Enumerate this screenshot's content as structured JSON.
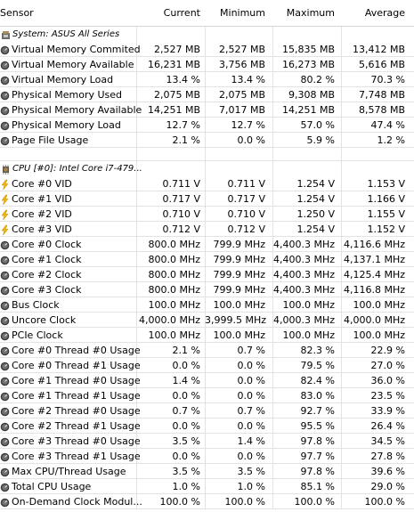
{
  "columns": {
    "sensor": "Sensor",
    "current": "Current",
    "minimum": "Minimum",
    "maximum": "Maximum",
    "average": "Average"
  },
  "groups": [
    {
      "title": "System: ASUS All Series",
      "icon": "system-board-icon",
      "rows": [
        {
          "name": "Virtual Memory Commited",
          "icon": "memory-gauge-icon",
          "current": "2,527 MB",
          "min": "2,527 MB",
          "max": "15,835 MB",
          "avg": "13,412 MB"
        },
        {
          "name": "Virtual Memory Available",
          "icon": "memory-gauge-icon",
          "current": "16,231 MB",
          "min": "3,756 MB",
          "max": "16,273 MB",
          "avg": "5,616 MB"
        },
        {
          "name": "Virtual Memory Load",
          "icon": "memory-gauge-icon",
          "current": "13.4 %",
          "min": "13.4 %",
          "max": "80.2 %",
          "avg": "70.3 %"
        },
        {
          "name": "Physical Memory Used",
          "icon": "memory-gauge-icon",
          "current": "2,075 MB",
          "min": "2,075 MB",
          "max": "9,308 MB",
          "avg": "7,748 MB"
        },
        {
          "name": "Physical Memory Available",
          "icon": "memory-gauge-icon",
          "current": "14,251 MB",
          "min": "7,017 MB",
          "max": "14,251 MB",
          "avg": "8,578 MB"
        },
        {
          "name": "Physical Memory Load",
          "icon": "memory-gauge-icon",
          "current": "12.7 %",
          "min": "12.7 %",
          "max": "57.0 %",
          "avg": "47.4 %"
        },
        {
          "name": "Page File Usage",
          "icon": "memory-gauge-icon",
          "current": "2.1 %",
          "min": "0.0 %",
          "max": "5.9 %",
          "avg": "1.2 %"
        }
      ]
    },
    {
      "title": "CPU [#0]: Intel Core i7-479...",
      "icon": "cpu-chip-icon",
      "rows": [
        {
          "name": "Core #0 VID",
          "icon": "lightning-icon",
          "current": "0.711 V",
          "min": "0.711 V",
          "max": "1.254 V",
          "avg": "1.153 V"
        },
        {
          "name": "Core #1 VID",
          "icon": "lightning-icon",
          "current": "0.717 V",
          "min": "0.717 V",
          "max": "1.254 V",
          "avg": "1.166 V"
        },
        {
          "name": "Core #2 VID",
          "icon": "lightning-icon",
          "current": "0.710 V",
          "min": "0.710 V",
          "max": "1.250 V",
          "avg": "1.155 V"
        },
        {
          "name": "Core #3 VID",
          "icon": "lightning-icon",
          "current": "0.712 V",
          "min": "0.712 V",
          "max": "1.254 V",
          "avg": "1.152 V"
        },
        {
          "name": "Core #0 Clock",
          "icon": "gauge-icon",
          "current": "800.0 MHz",
          "min": "799.9 MHz",
          "max": "4,400.3 MHz",
          "avg": "4,116.6 MHz"
        },
        {
          "name": "Core #1 Clock",
          "icon": "gauge-icon",
          "current": "800.0 MHz",
          "min": "799.9 MHz",
          "max": "4,400.3 MHz",
          "avg": "4,137.1 MHz"
        },
        {
          "name": "Core #2 Clock",
          "icon": "gauge-icon",
          "current": "800.0 MHz",
          "min": "799.9 MHz",
          "max": "4,400.3 MHz",
          "avg": "4,125.4 MHz"
        },
        {
          "name": "Core #3 Clock",
          "icon": "gauge-icon",
          "current": "800.0 MHz",
          "min": "799.9 MHz",
          "max": "4,400.3 MHz",
          "avg": "4,116.8 MHz"
        },
        {
          "name": "Bus Clock",
          "icon": "gauge-icon",
          "current": "100.0 MHz",
          "min": "100.0 MHz",
          "max": "100.0 MHz",
          "avg": "100.0 MHz"
        },
        {
          "name": "Uncore Clock",
          "icon": "gauge-icon",
          "current": "4,000.0 MHz",
          "min": "3,999.5 MHz",
          "max": "4,000.3 MHz",
          "avg": "4,000.0 MHz"
        },
        {
          "name": "PCIe Clock",
          "icon": "gauge-icon",
          "current": "100.0 MHz",
          "min": "100.0 MHz",
          "max": "100.0 MHz",
          "avg": "100.0 MHz"
        },
        {
          "name": "Core #0 Thread #0 Usage",
          "icon": "gauge-icon",
          "current": "2.1 %",
          "min": "0.7 %",
          "max": "82.3 %",
          "avg": "22.9 %"
        },
        {
          "name": "Core #0 Thread #1 Usage",
          "icon": "gauge-icon",
          "current": "0.0 %",
          "min": "0.0 %",
          "max": "79.5 %",
          "avg": "27.0 %"
        },
        {
          "name": "Core #1 Thread #0 Usage",
          "icon": "gauge-icon",
          "current": "1.4 %",
          "min": "0.0 %",
          "max": "82.4 %",
          "avg": "36.0 %"
        },
        {
          "name": "Core #1 Thread #1 Usage",
          "icon": "gauge-icon",
          "current": "0.0 %",
          "min": "0.0 %",
          "max": "83.0 %",
          "avg": "23.5 %"
        },
        {
          "name": "Core #2 Thread #0 Usage",
          "icon": "gauge-icon",
          "current": "0.7 %",
          "min": "0.7 %",
          "max": "92.7 %",
          "avg": "33.9 %"
        },
        {
          "name": "Core #2 Thread #1 Usage",
          "icon": "gauge-icon",
          "current": "0.0 %",
          "min": "0.0 %",
          "max": "95.5 %",
          "avg": "26.4 %"
        },
        {
          "name": "Core #3 Thread #0 Usage",
          "icon": "gauge-icon",
          "current": "3.5 %",
          "min": "1.4 %",
          "max": "97.8 %",
          "avg": "34.5 %"
        },
        {
          "name": "Core #3 Thread #1 Usage",
          "icon": "gauge-icon",
          "current": "0.0 %",
          "min": "0.0 %",
          "max": "97.7 %",
          "avg": "27.8 %"
        },
        {
          "name": "Max CPU/Thread Usage",
          "icon": "gauge-icon",
          "current": "3.5 %",
          "min": "3.5 %",
          "max": "97.8 %",
          "avg": "39.6 %"
        },
        {
          "name": "Total CPU Usage",
          "icon": "gauge-icon",
          "current": "1.0 %",
          "min": "1.0 %",
          "max": "85.1 %",
          "avg": "29.0 %"
        },
        {
          "name": "On-Demand Clock Modul...",
          "icon": "gauge-icon",
          "current": "100.0 %",
          "min": "100.0 %",
          "max": "100.0 %",
          "avg": "100.0 %"
        }
      ]
    }
  ],
  "colors": {
    "gridline": "#e3e3e3",
    "lightning": "#f2b705",
    "gauge": "#3a3a3a",
    "memory": "#4a4a4a"
  }
}
